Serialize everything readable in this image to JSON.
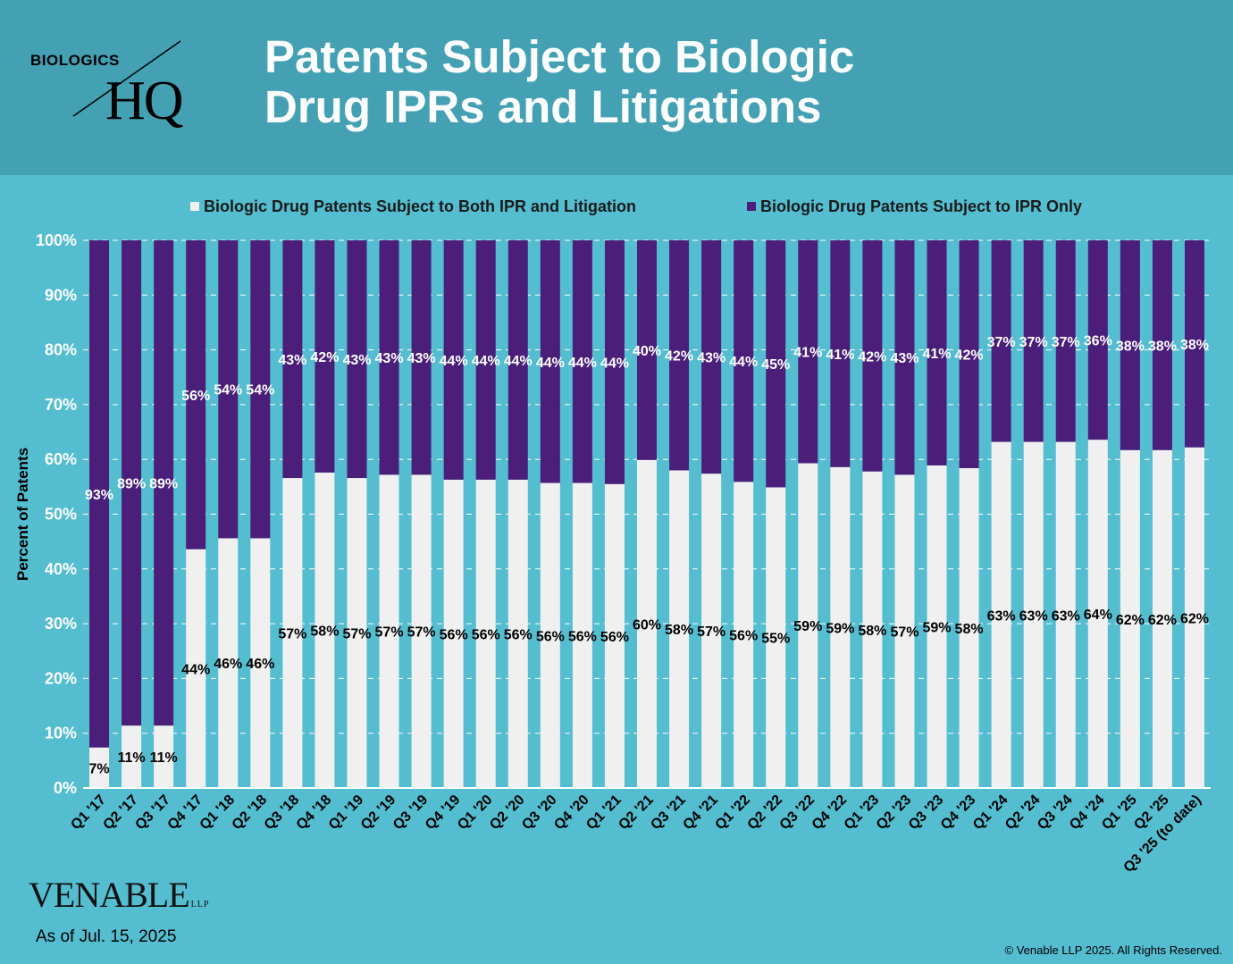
{
  "logo": {
    "line1": "BIOLOGICS",
    "line2": "HQ"
  },
  "title": {
    "line1": "Patents Subject to Biologic",
    "line2": "Drug IPRs and Litigations"
  },
  "footer": {
    "brand": "VENABLE",
    "brand_suffix": "LLP",
    "as_of": "As of Jul. 15, 2025",
    "copyright": "© Venable LLP 2025. All Rights Reserved."
  },
  "colors": {
    "both": "#f0f0f0",
    "ipr_only": "#4b1f79",
    "background": "#54bdd0",
    "header": "#44a1b4"
  },
  "chart_data": {
    "type": "bar",
    "stacked": true,
    "ylabel": "Percent of Patents",
    "ylim": [
      0,
      100
    ],
    "yticks": [
      "0%",
      "10%",
      "20%",
      "30%",
      "40%",
      "50%",
      "60%",
      "70%",
      "80%",
      "90%",
      "100%"
    ],
    "grid": true,
    "legend_position": "top",
    "categories": [
      "Q1 '17",
      "Q2 '17",
      "Q3 '17",
      "Q4 '17",
      "Q1 '18",
      "Q2 '18",
      "Q3 '18",
      "Q4 '18",
      "Q1 '19",
      "Q2 '19",
      "Q3 '19",
      "Q4 '19",
      "Q1 '20",
      "Q2 '20",
      "Q3 '20",
      "Q4 '20",
      "Q1 '21",
      "Q2 '21",
      "Q3 '21",
      "Q4 '21",
      "Q1 '22",
      "Q2 '22",
      "Q3 '22",
      "Q4 '22",
      "Q1 '23",
      "Q2 '23",
      "Q3 '23",
      "Q4 '23",
      "Q1 '24",
      "Q2 '24",
      "Q3 '24",
      "Q4 '24",
      "Q1 '25",
      "Q2 '25",
      "Q3 '25 (to date)"
    ],
    "series": [
      {
        "name": "Biologic Drug Patents Subject to Both IPR and Litigation",
        "values": [
          7.4,
          11.4,
          11.4,
          43.6,
          45.6,
          45.6,
          56.6,
          57.6,
          56.6,
          57.2,
          57.2,
          56.3,
          56.3,
          56.3,
          55.7,
          55.7,
          55.5,
          59.9,
          58.0,
          57.4,
          55.9,
          54.9,
          59.3,
          58.6,
          57.8,
          57.2,
          58.9,
          58.4,
          63.2,
          63.2,
          63.2,
          63.6,
          61.7,
          61.7,
          62.2
        ],
        "labels": [
          "7%",
          "11%",
          "11%",
          "44%",
          "46%",
          "46%",
          "57%",
          "58%",
          "57%",
          "57%",
          "57%",
          "56%",
          "56%",
          "56%",
          "56%",
          "56%",
          "56%",
          "60%",
          "58%",
          "57%",
          "56%",
          "55%",
          "59%",
          "59%",
          "58%",
          "57%",
          "59%",
          "58%",
          "63%",
          "63%",
          "63%",
          "64%",
          "62%",
          "62%",
          "62%"
        ]
      },
      {
        "name": "Biologic Drug Patents Subject to IPR Only",
        "values": [
          92.6,
          88.6,
          88.6,
          56.4,
          54.4,
          54.4,
          43.4,
          42.4,
          43.4,
          42.8,
          42.8,
          43.7,
          43.7,
          43.7,
          44.3,
          44.3,
          44.5,
          40.1,
          42.0,
          42.6,
          44.1,
          45.1,
          40.7,
          41.4,
          42.2,
          42.8,
          41.1,
          41.6,
          36.8,
          36.8,
          36.8,
          36.4,
          38.3,
          38.3,
          37.8
        ],
        "labels": [
          "93%",
          "89%",
          "89%",
          "56%",
          "54%",
          "54%",
          "43%",
          "42%",
          "43%",
          "43%",
          "43%",
          "44%",
          "44%",
          "44%",
          "44%",
          "44%",
          "44%",
          "40%",
          "42%",
          "43%",
          "44%",
          "45%",
          "41%",
          "41%",
          "42%",
          "43%",
          "41%",
          "42%",
          "37%",
          "37%",
          "37%",
          "36%",
          "38%",
          "38%",
          "38%"
        ]
      }
    ]
  }
}
